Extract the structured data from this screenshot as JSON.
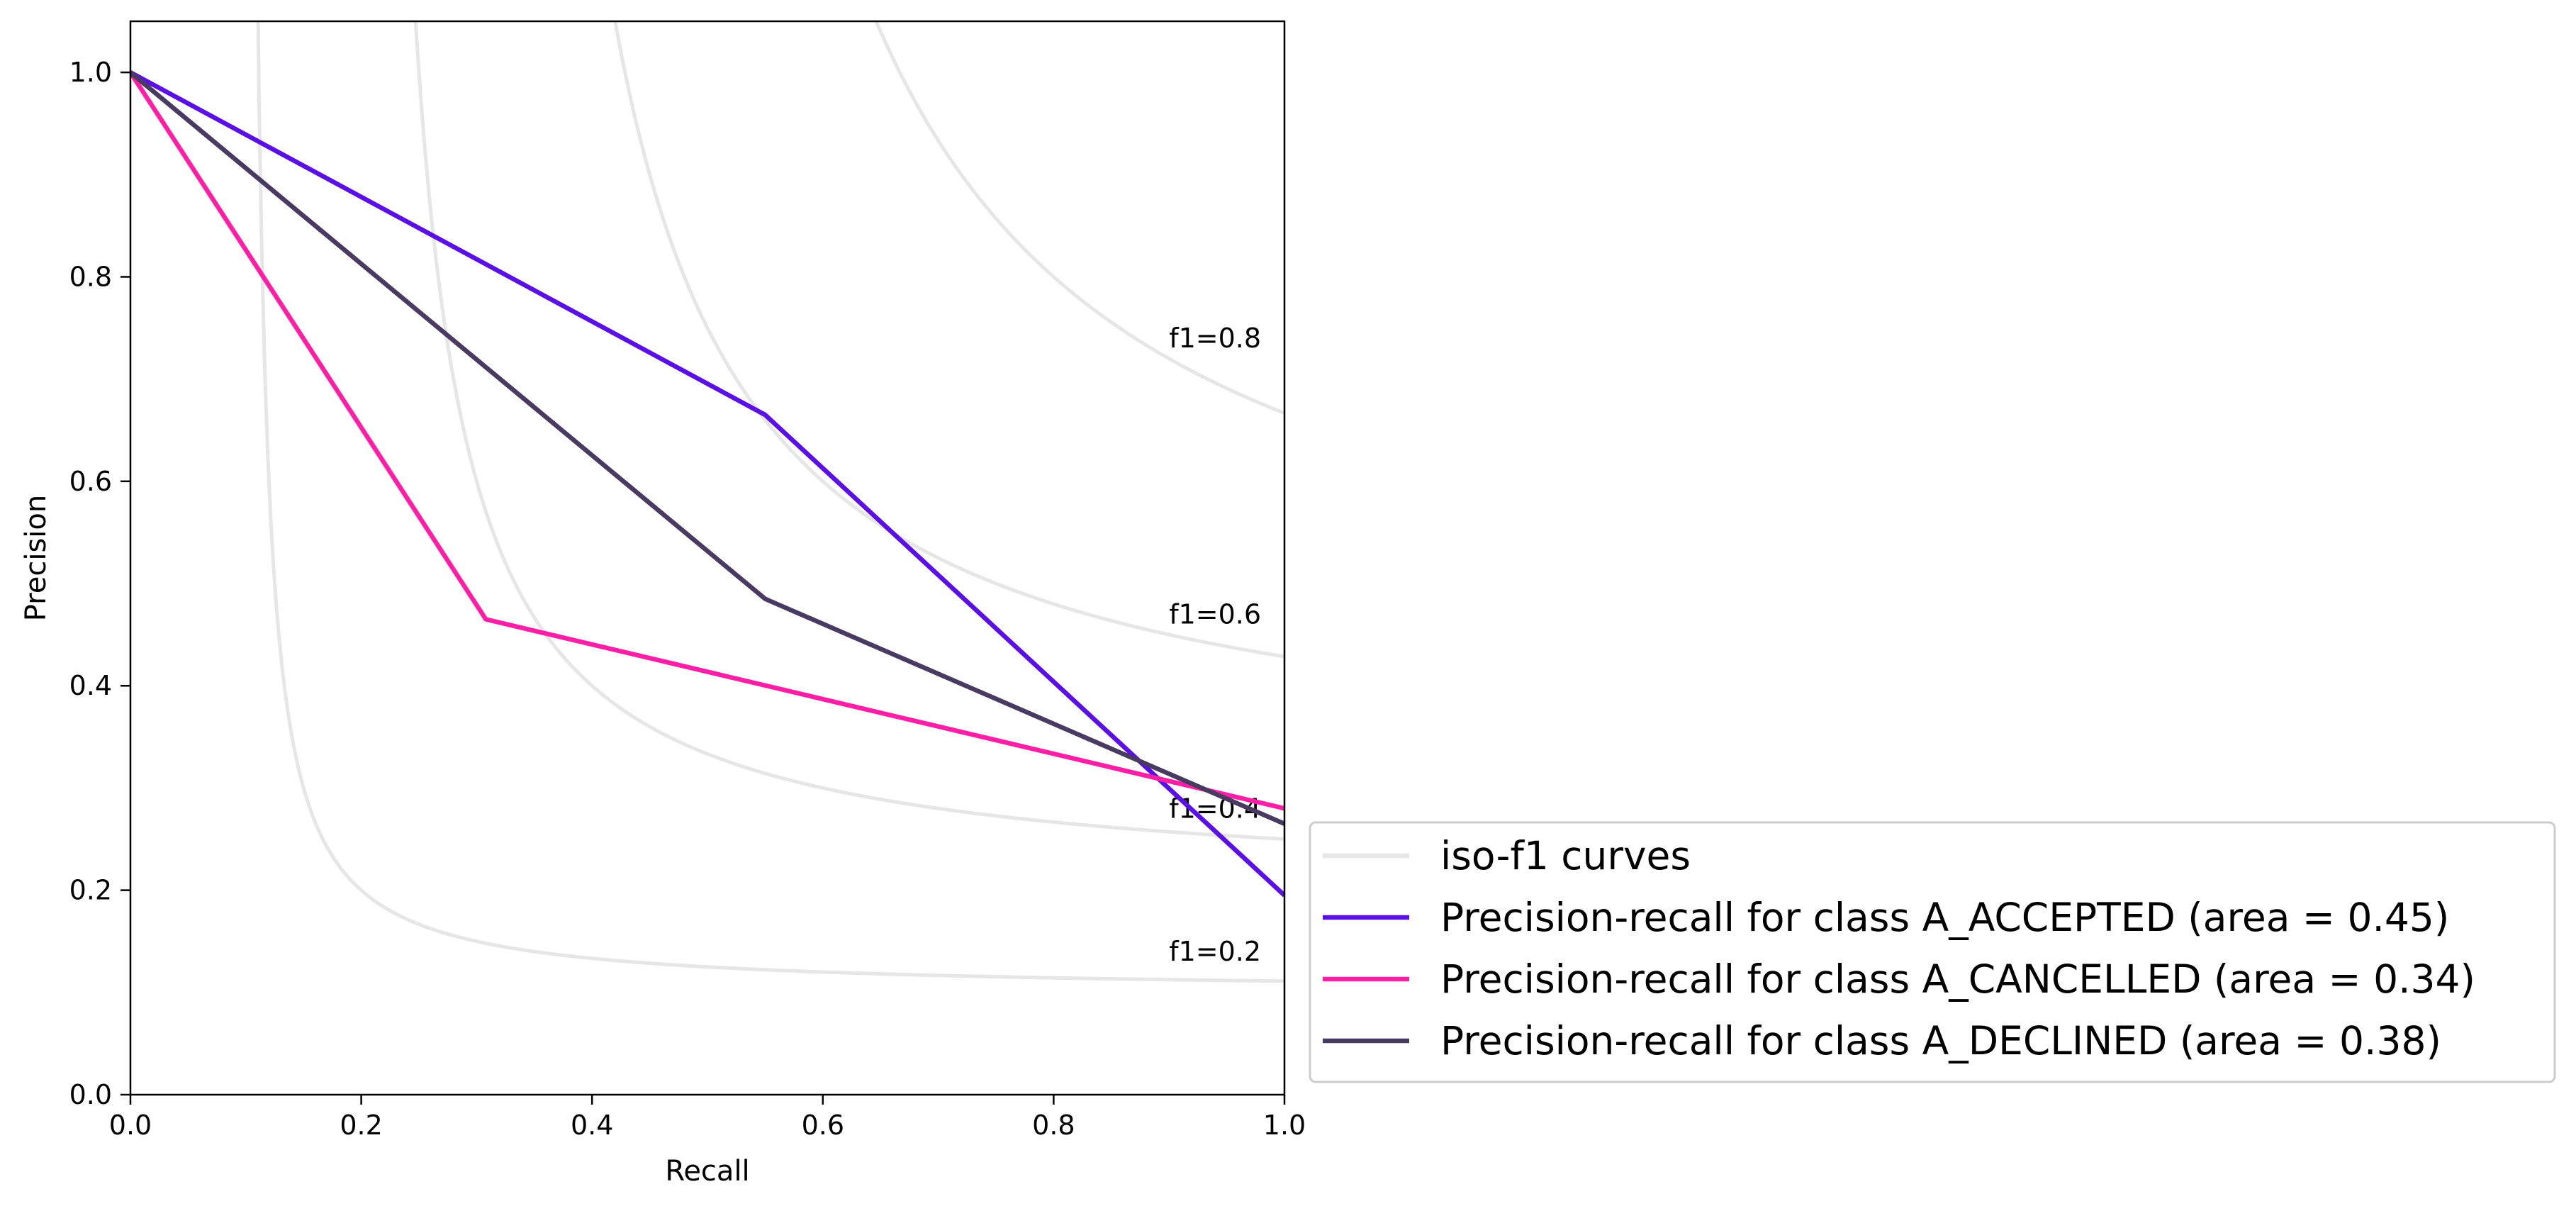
{
  "chart_data": {
    "type": "line",
    "xlabel": "Recall",
    "ylabel": "Precision",
    "xlim": [
      0.0,
      1.0
    ],
    "ylim": [
      0.0,
      1.05
    ],
    "x_ticks": [
      "0.0",
      "0.2",
      "0.4",
      "0.6",
      "0.8",
      "1.0"
    ],
    "y_ticks": [
      "0.0",
      "0.2",
      "0.4",
      "0.6",
      "0.8",
      "1.0"
    ],
    "grid": false,
    "legend_position": "outside lower-right",
    "iso_f1": {
      "legend_label": "iso-f1 curves",
      "color": "#e6e6e6",
      "levels": [
        0.2,
        0.4,
        0.6,
        0.8
      ],
      "labels": [
        "f1=0.2",
        "f1=0.4",
        "f1=0.6",
        "f1=0.8"
      ],
      "label_y": [
        0.14,
        0.28,
        0.47,
        0.74
      ]
    },
    "series": [
      {
        "name": "Precision-recall for class A_ACCEPTED (area = 0.45)",
        "color": "#5a0fe6",
        "points": [
          [
            0.0,
            1.0
          ],
          [
            0.55,
            0.665
          ],
          [
            1.0,
            0.195
          ]
        ]
      },
      {
        "name": "Precision-recall for class A_CANCELLED (area = 0.34)",
        "color": "#ff1fa6",
        "points": [
          [
            0.0,
            1.0
          ],
          [
            0.308,
            0.465
          ],
          [
            1.0,
            0.28
          ]
        ]
      },
      {
        "name": "Precision-recall for class A_DECLINED (area = 0.38)",
        "color": "#483a60",
        "points": [
          [
            0.0,
            1.0
          ],
          [
            0.55,
            0.485
          ],
          [
            1.0,
            0.265
          ]
        ]
      }
    ]
  }
}
